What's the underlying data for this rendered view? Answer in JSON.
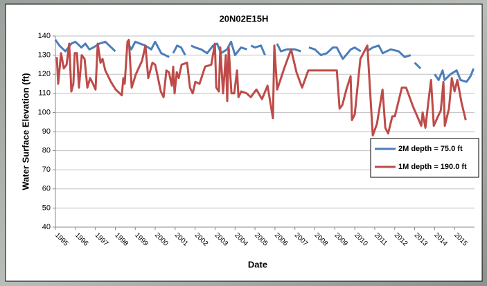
{
  "chart_data": {
    "type": "line",
    "title": "20N02E15H",
    "y_label": "Water Surface Elevation (ft)",
    "x_label": "Date",
    "xlim": [
      1995,
      2016
    ],
    "xticks": [
      1995,
      1996,
      1997,
      1998,
      1999,
      2000,
      2001,
      2002,
      2003,
      2004,
      2005,
      2006,
      2007,
      2008,
      2009,
      2010,
      2011,
      2012,
      2013,
      2014,
      2015
    ],
    "ylim": [
      40,
      140
    ],
    "yticks": [
      40,
      50,
      60,
      70,
      80,
      90,
      100,
      110,
      120,
      130,
      140
    ],
    "grid": true,
    "legend": "right",
    "series": [
      {
        "name": "2M depth = 75.0 ft",
        "color": "#4a7ebb",
        "x": [
          1995.0,
          1995.2,
          1995.5,
          1995.8,
          1996.0,
          1996.3,
          1996.5,
          1996.7,
          1996.9,
          1997.2,
          1997.5,
          1997.8,
          1998.0,
          1998.3,
          1998.6,
          1998.8,
          1999.0,
          1999.5,
          1999.8,
          2000.0,
          2000.3,
          2000.7,
          2000.8,
          2000.9,
          2001.1,
          2001.3,
          2001.5,
          2001.65,
          2001.8,
          2002.0,
          2002.3,
          2002.6,
          2002.9,
          2003.1,
          2003.3,
          2003.6,
          2003.8,
          2004.0,
          2004.3,
          2004.6,
          2004.7,
          2004.8,
          2005.0,
          2005.3,
          2005.5,
          2005.8,
          2006.1,
          2006.3,
          2006.6,
          2007.0,
          2007.3,
          2007.5,
          2007.7,
          2008.0,
          2008.3,
          2008.6,
          2008.9,
          2009.1,
          2009.4,
          2009.8,
          2010.0,
          2010.3,
          2010.45,
          2010.6,
          2010.9,
          2011.2,
          2011.4,
          2011.8,
          2012.2,
          2012.5,
          2012.8,
          2012.9,
          2013.0,
          2013.3,
          2013.6,
          2014.0,
          2014.2,
          2014.4,
          2014.5,
          2014.8,
          2015.1,
          2015.3,
          2015.6,
          2015.8,
          2015.95
        ],
        "values": [
          138,
          135,
          132,
          136,
          137,
          134,
          136,
          133,
          134,
          136,
          137,
          134,
          132,
          null,
          137,
          133,
          137,
          135,
          133,
          137,
          131,
          129,
          null,
          131,
          135,
          134,
          130,
          null,
          135,
          134,
          133,
          131,
          135,
          136,
          131,
          133,
          137,
          130,
          134,
          133,
          null,
          135,
          134,
          135,
          130,
          null,
          136,
          132,
          133,
          133,
          132,
          null,
          134,
          133,
          130,
          131,
          134,
          134,
          128,
          133,
          134,
          132,
          null,
          132,
          134,
          135,
          131,
          133,
          132,
          129,
          130,
          null,
          126,
          123,
          null,
          120,
          117,
          122,
          117,
          120,
          122,
          117,
          116,
          119,
          123
        ]
      },
      {
        "name": "1M depth = 190.0 ft",
        "color": "#be4b48",
        "x": [
          1995.07,
          1995.14,
          1995.28,
          1995.42,
          1995.56,
          1995.69,
          1995.8,
          1995.9,
          1995.97,
          1996.08,
          1996.18,
          1996.32,
          1996.46,
          1996.6,
          1996.74,
          1996.88,
          1997.01,
          1997.12,
          1997.26,
          1997.36,
          1997.5,
          1997.78,
          1998.02,
          1998.33,
          1998.4,
          1998.47,
          1998.61,
          1998.68,
          1998.82,
          1999.03,
          1999.34,
          1999.51,
          1999.65,
          1999.86,
          2000.0,
          2000.14,
          2000.28,
          2000.42,
          2000.56,
          2000.69,
          2000.83,
          2000.9,
          2000.97,
          2001.08,
          2001.18,
          2001.32,
          2001.6,
          2001.74,
          2001.88,
          2002.01,
          2002.22,
          2002.5,
          2002.81,
          2002.99,
          2003.06,
          2003.19,
          2003.26,
          2003.4,
          2003.54,
          2003.61,
          2003.68,
          2003.82,
          2003.96,
          2004.1,
          2004.17,
          2004.31,
          2004.58,
          2004.79,
          2005.07,
          2005.35,
          2005.63,
          2005.9,
          2005.97,
          2006.11,
          2006.46,
          2006.81,
          2007.08,
          2007.36,
          2007.67,
          2009.1,
          2009.24,
          2009.38,
          2009.58,
          2009.79,
          2009.86,
          2010.0,
          2010.28,
          2010.63,
          2010.9,
          2011.11,
          2011.39,
          2011.53,
          2011.67,
          2011.88,
          2012.01,
          2012.36,
          2012.57,
          2012.92,
          2013.13,
          2013.33,
          2013.4,
          2013.54,
          2013.68,
          2013.82,
          2013.96,
          2014.17,
          2014.31,
          2014.44,
          2014.51,
          2014.72,
          2014.86,
          2015.0,
          2015.14,
          2015.35,
          2015.56
        ],
        "values": [
          129,
          115,
          131,
          123,
          125,
          136,
          111,
          115,
          131,
          131,
          113,
          130,
          128,
          113,
          118,
          115,
          112,
          136,
          126,
          128,
          122,
          116,
          112,
          109,
          118,
          115,
          137,
          138,
          113,
          120,
          127,
          135,
          118,
          126,
          125,
          118,
          111,
          108,
          122,
          121,
          114,
          124,
          110,
          121,
          118,
          125,
          126,
          113,
          110,
          116,
          115,
          124,
          125,
          136,
          113,
          111,
          134,
          110,
          130,
          106,
          134,
          110,
          110,
          122,
          108,
          111,
          110,
          108,
          112,
          107,
          114,
          97,
          135,
          112,
          123,
          133,
          121,
          113,
          122,
          122,
          102,
          104,
          112,
          119,
          96,
          99,
          128,
          135,
          88,
          94,
          112,
          92,
          89,
          98,
          98,
          113,
          113,
          103,
          98,
          93,
          100,
          92,
          105,
          117,
          93,
          98,
          101,
          116,
          93,
          102,
          118,
          111,
          117,
          105,
          96
        ]
      }
    ]
  }
}
